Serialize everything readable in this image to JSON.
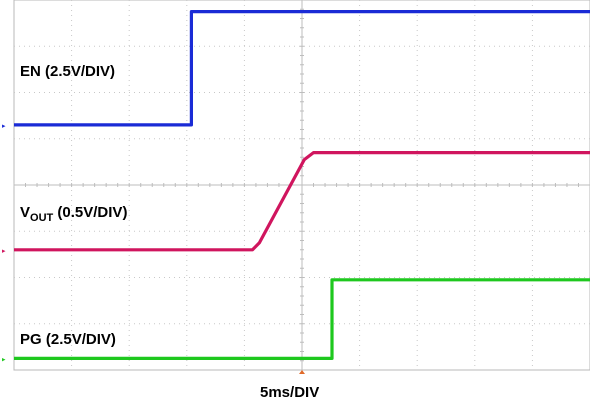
{
  "chart_data": {
    "type": "line",
    "xlabel": "5ms/DIV",
    "xlim": [
      0,
      50
    ],
    "ylim": [
      0,
      8
    ],
    "grid": true,
    "series": [
      {
        "name": "EN",
        "label_main": "EN",
        "label_sub": "",
        "label_rest": " (2.5V/DIV)",
        "color": "#1a2bd6",
        "x": [
          0,
          15.4,
          15.4,
          50
        ],
        "y": [
          5.3,
          5.3,
          7.75,
          7.75
        ]
      },
      {
        "name": "VOUT",
        "label_main": "V",
        "label_sub": "OUT",
        "label_rest": " (0.5V/DIV)",
        "color": "#d0155e",
        "x": [
          0,
          20.7,
          21.3,
          25.2,
          26.0,
          50
        ],
        "y": [
          2.6,
          2.6,
          2.75,
          4.55,
          4.7,
          4.7
        ]
      },
      {
        "name": "PG",
        "label_main": "PG",
        "label_sub": "",
        "label_rest": " (2.5V/DIV)",
        "color": "#1ec81e",
        "x": [
          0,
          27.6,
          27.6,
          50
        ],
        "y": [
          0.25,
          0.25,
          1.95,
          1.95
        ]
      }
    ]
  }
}
